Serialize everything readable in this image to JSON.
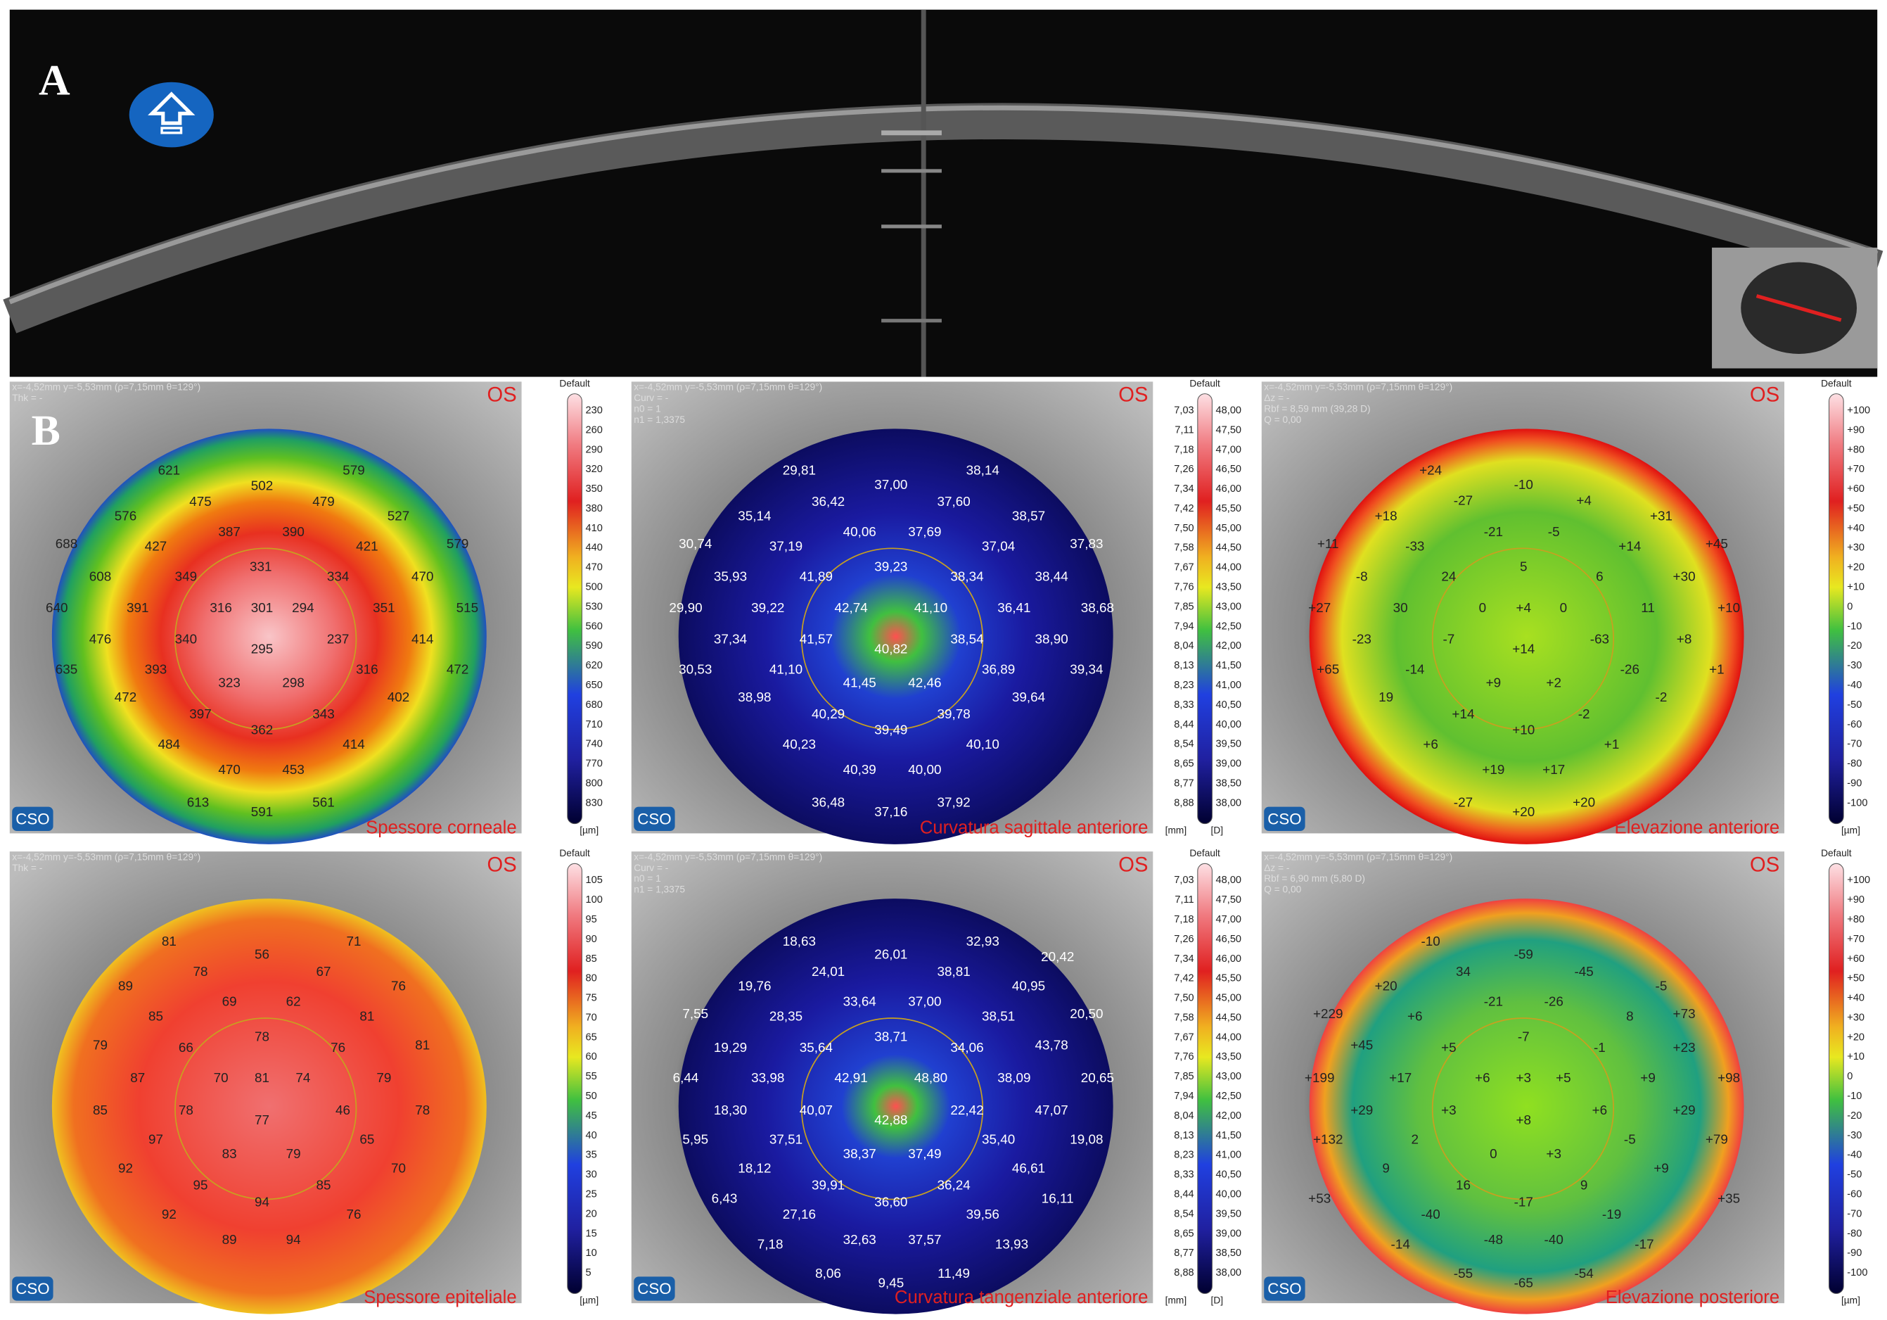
{
  "panel_a": {
    "label": "A"
  },
  "panel_b": {
    "label": "B"
  },
  "logo": "CSO",
  "maps": [
    {
      "eye": "OS",
      "title": "Spessore corneale",
      "info": [
        "x=-4,52mm y=-5,53mm (ρ=7,15mm θ=129°)",
        "Thk = -"
      ],
      "scale_header": "Default",
      "units": [
        "[µm]"
      ],
      "scale": [
        "230",
        "260",
        "290",
        "320",
        "350",
        "380",
        "410",
        "440",
        "470",
        "500",
        "530",
        "560",
        "590",
        "620",
        "650",
        "680",
        "710",
        "740",
        "770",
        "800",
        "830"
      ],
      "values": [
        "621",
        "502",
        "579",
        "475",
        "479",
        "576",
        "527",
        "387",
        "390",
        "427",
        "421",
        "688",
        "579",
        "331",
        "334",
        "349",
        "470",
        "608",
        "391",
        "316",
        "301",
        "294",
        "351",
        "640",
        "515",
        "340",
        "237",
        "414",
        "476",
        "295",
        "393",
        "316",
        "635",
        "472",
        "323",
        "298",
        "472",
        "402",
        "397",
        "343",
        "362",
        "484",
        "414",
        "470",
        "453",
        "613",
        "561",
        "591"
      ]
    },
    {
      "eye": "OS",
      "title": "Curvatura sagittale anteriore",
      "info": [
        "x=-4,52mm y=-5,53mm (ρ=7,15mm θ=129°)",
        "Curv = -",
        "n0 = 1",
        "n1 = 1,3375"
      ],
      "scale_header": "Default",
      "units": [
        "[mm]",
        "[D]"
      ],
      "scale": [
        "7,03",
        "7,11",
        "7,18",
        "7,26",
        "7,34",
        "7,42",
        "7,50",
        "7,58",
        "7,67",
        "7,76",
        "7,85",
        "7,94",
        "8,04",
        "8,13",
        "8,23",
        "8,33",
        "8,44",
        "8,54",
        "8,65",
        "8,77",
        "8,88"
      ],
      "scale_right": [
        "48,00",
        "47,50",
        "47,00",
        "46,50",
        "46,00",
        "45,50",
        "45,00",
        "44,50",
        "44,00",
        "43,50",
        "43,00",
        "42,50",
        "42,00",
        "41,50",
        "41,00",
        "40,50",
        "40,00",
        "39,50",
        "39,00",
        "38,50",
        "38,00"
      ],
      "values": [
        "29,81",
        "38,14",
        "37,00",
        "36,42",
        "37,60",
        "35,14",
        "38,57",
        "40,06",
        "37,69",
        "37,19",
        "37,04",
        "30,74",
        "37,83",
        "39,23",
        "41,89",
        "38,34",
        "35,93",
        "38,44",
        "39,22",
        "42,74",
        "41,10",
        "36,41",
        "29,90",
        "38,68",
        "37,34",
        "41,57",
        "38,54",
        "38,90",
        "40,82",
        "41,10",
        "36,89",
        "30,53",
        "39,34",
        "41,45",
        "42,46",
        "38,98",
        "39,64",
        "40,29",
        "39,78",
        "39,49",
        "40,23",
        "40,10",
        "40,39",
        "40,00",
        "36,48",
        "37,92",
        "37,16"
      ]
    },
    {
      "eye": "OS",
      "title": "Elevazione anteriore",
      "info": [
        "x=-4,52mm y=-5,53mm (ρ=7,15mm θ=129°)",
        "Δz = -",
        "Rbf = 8,59 mm (39,28 D)",
        "Q = 0,00"
      ],
      "scale_header": "Default",
      "units": [
        "[µm]"
      ],
      "scale": [
        "+100",
        "+90",
        "+80",
        "+70",
        "+60",
        "+50",
        "+40",
        "+30",
        "+20",
        "+10",
        "0",
        "-10",
        "-20",
        "-30",
        "-40",
        "-50",
        "-60",
        "-70",
        "-80",
        "-90",
        "-100"
      ],
      "values": [
        "+24",
        "-27",
        "-10",
        "+4",
        "+18",
        "+31",
        "-21",
        "-5",
        "-33",
        "+14",
        "+11",
        "+45",
        "5",
        "24",
        "6",
        "+30",
        "-8",
        "0",
        "+4",
        "0",
        "30",
        "11",
        "+10",
        "+27",
        "-7",
        "-63",
        "+8",
        "-23",
        "+14",
        "-14",
        "-26",
        "+65",
        "+1",
        "+9",
        "+2",
        "19",
        "-2",
        "+14",
        "-2",
        "+10",
        "+6",
        "+1",
        "+19",
        "+17",
        "-27",
        "+20",
        "+20"
      ]
    },
    {
      "eye": "OS",
      "title": "Spessore epiteliale",
      "info": [
        "x=-4,52mm y=-5,53mm (ρ=7,15mm θ=129°)",
        "Thk = -"
      ],
      "scale_header": "Default",
      "units": [
        "[µm]"
      ],
      "scale": [
        "105",
        "100",
        "95",
        "90",
        "85",
        "80",
        "75",
        "70",
        "65",
        "60",
        "55",
        "50",
        "45",
        "40",
        "35",
        "30",
        "25",
        "20",
        "15",
        "10",
        "5"
      ],
      "values": [
        "81",
        "56",
        "71",
        "78",
        "67",
        "89",
        "76",
        "69",
        "62",
        "85",
        "81",
        "79",
        "81",
        "66",
        "78",
        "76",
        "87",
        "70",
        "81",
        "74",
        "79",
        "85",
        "78",
        "46",
        "78",
        "77",
        "97",
        "65",
        "92",
        "70",
        "83",
        "79",
        "95",
        "85",
        "94",
        "92",
        "76",
        "89",
        "94"
      ]
    },
    {
      "eye": "OS",
      "title": "Curvatura tangenziale anteriore",
      "info": [
        "x=-4,52mm y=-5,53mm (ρ=7,15mm θ=129°)",
        "Curv = -",
        "n0 = 1",
        "n1 = 1,3375"
      ],
      "scale_header": "Default",
      "units": [
        "[mm]",
        "[D]"
      ],
      "scale": [
        "7,03",
        "7,11",
        "7,18",
        "7,26",
        "7,34",
        "7,42",
        "7,50",
        "7,58",
        "7,67",
        "7,76",
        "7,85",
        "7,94",
        "8,04",
        "8,13",
        "8,23",
        "8,33",
        "8,44",
        "8,54",
        "8,65",
        "8,77",
        "8,88"
      ],
      "scale_right": [
        "48,00",
        "47,50",
        "47,00",
        "46,50",
        "46,00",
        "45,50",
        "45,00",
        "44,50",
        "44,00",
        "43,50",
        "43,00",
        "42,50",
        "42,00",
        "41,50",
        "41,00",
        "40,50",
        "40,00",
        "39,50",
        "39,00",
        "38,50",
        "38,00"
      ],
      "values": [
        "18,63",
        "32,93",
        "26,01",
        "24,01",
        "38,81",
        "20,42",
        "19,76",
        "40,95",
        "33,64",
        "37,00",
        "7,55",
        "28,35",
        "38,51",
        "20,50",
        "38,71",
        "35,64",
        "34,06",
        "19,29",
        "43,78",
        "6,44",
        "33,98",
        "42,91",
        "48,80",
        "38,09",
        "20,65",
        "18,30",
        "40,07",
        "22,42",
        "47,07",
        "42,88",
        "5,95",
        "37,51",
        "35,40",
        "19,08",
        "38,37",
        "37,49",
        "18,12",
        "46,61",
        "39,91",
        "36,24",
        "36,60",
        "6,43",
        "16,11",
        "27,16",
        "39,56",
        "7,18",
        "32,63",
        "37,57",
        "13,93",
        "8,06",
        "11,49",
        "9,45"
      ]
    },
    {
      "eye": "OS",
      "title": "Elevazione posteriore",
      "info": [
        "x=-4,52mm y=-5,53mm (ρ=7,15mm θ=129°)",
        "Δz = -",
        "Rbf = 6,90 mm (5,80 D)",
        "Q = 0,00"
      ],
      "scale_header": "Default",
      "units": [
        "[µm]"
      ],
      "scale": [
        "+100",
        "+90",
        "+80",
        "+70",
        "+60",
        "+50",
        "+40",
        "+30",
        "+20",
        "+10",
        "0",
        "-10",
        "-20",
        "-30",
        "-40",
        "-50",
        "-60",
        "-70",
        "-80",
        "-90",
        "-100"
      ],
      "values": [
        "-10",
        "-59",
        "-45",
        "34",
        "+20",
        "-5",
        "-21",
        "-26",
        "+229",
        "+6",
        "8",
        "+73",
        "-7",
        "+5",
        "-1",
        "+23",
        "+45",
        "+199",
        "+17",
        "+6",
        "+3",
        "+5",
        "+9",
        "+98",
        "+3",
        "+6",
        "+29",
        "+29",
        "+8",
        "+132",
        "2",
        "-5",
        "+79",
        "0",
        "+3",
        "9",
        "+9",
        "16",
        "9",
        "-17",
        "+53",
        "+35",
        "-40",
        "-19",
        "-14",
        "-48",
        "-40",
        "-17",
        "-55",
        "-54",
        "-65"
      ]
    }
  ]
}
